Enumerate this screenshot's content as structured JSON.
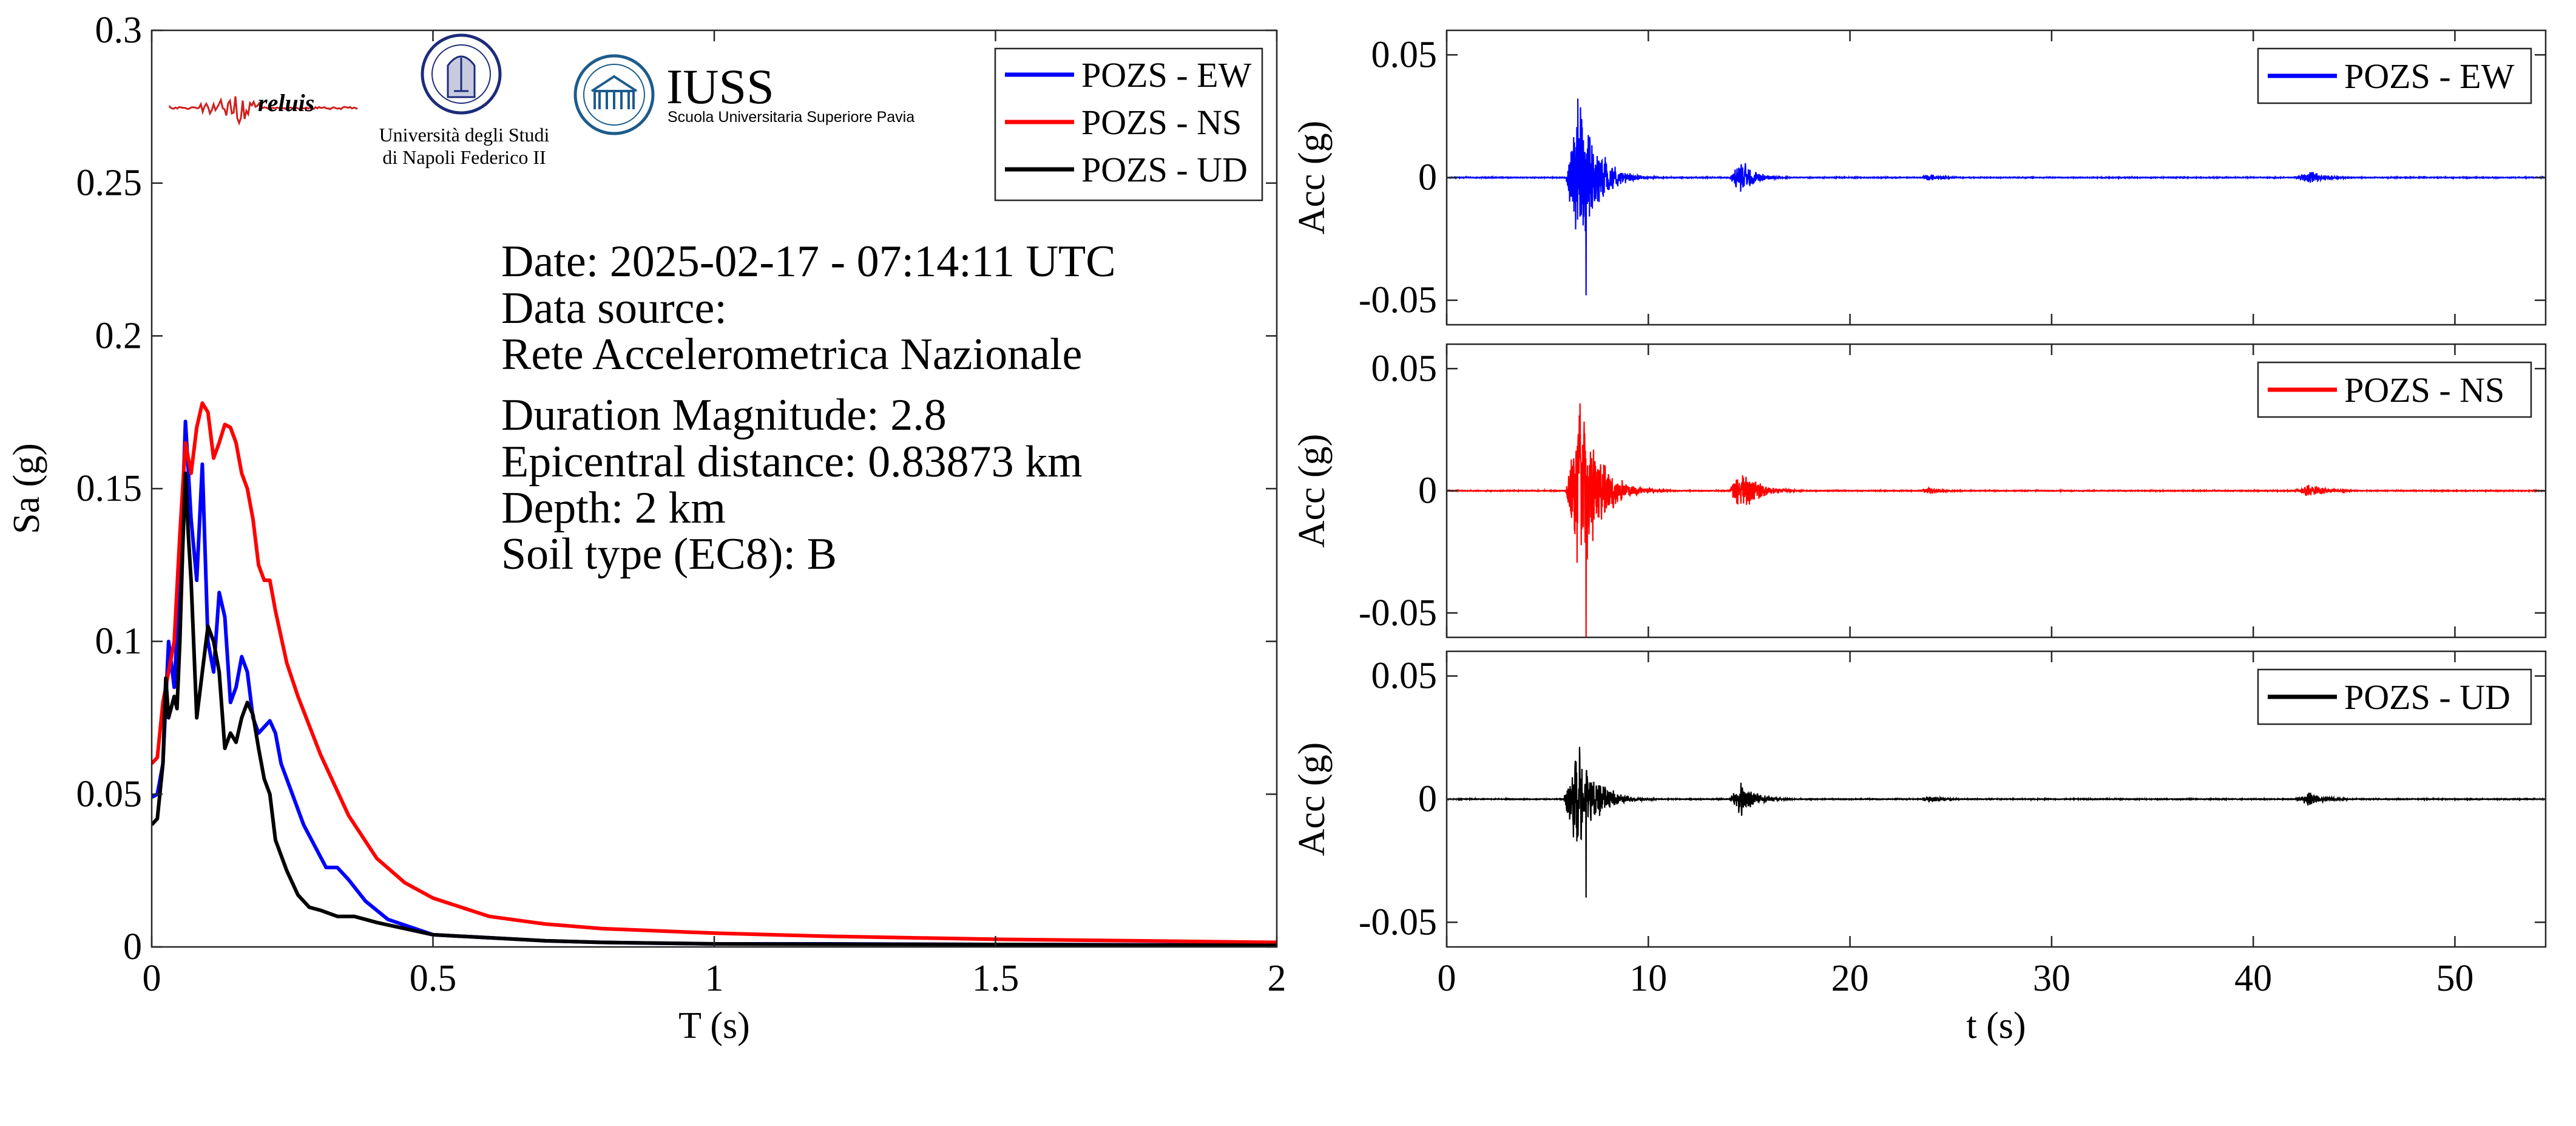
{
  "logos": {
    "reluis": "reluis",
    "unina_line1": "Università degli Studi",
    "unina_line2": "di Napoli Federico II",
    "iuss_title": "IUSS",
    "iuss_subtitle": "Scuola Universitaria Superiore Pavia"
  },
  "info": {
    "date": "Date: 2025-02-17 - 07:14:11 UTC",
    "data_source": "Data source:",
    "network": "Rete Accelerometrica Nazionale",
    "magnitude": "Duration Magnitude: 2.8",
    "distance": "Epicentral distance: 0.83873 km",
    "depth": "Depth: 2 km",
    "soil": "Soil type (EC8): B"
  },
  "colors": {
    "EW": "#0000ff",
    "NS": "#ff0000",
    "UD": "#000000"
  },
  "chart_data": [
    {
      "type": "line",
      "xlabel": "T (s)",
      "ylabel": "Sa (g)",
      "xlim": [
        0,
        2
      ],
      "ylim": [
        0,
        0.3
      ],
      "xticks": [
        0,
        0.5,
        1,
        1.5,
        2
      ],
      "xtick_labels": [
        "0",
        "0.5",
        "1",
        "1.5",
        "2"
      ],
      "yticks": [
        0,
        0.05,
        0.1,
        0.15,
        0.2,
        0.25,
        0.3
      ],
      "ytick_labels": [
        "0",
        "0.05",
        "0.1",
        "0.15",
        "0.2",
        "0.25",
        "0.3"
      ],
      "legend_position": "top-right",
      "series": [
        {
          "name": "POZS - EW",
          "color": "#0000ff",
          "x": [
            0,
            0.01,
            0.02,
            0.03,
            0.04,
            0.05,
            0.055,
            0.06,
            0.07,
            0.08,
            0.09,
            0.1,
            0.11,
            0.12,
            0.13,
            0.14,
            0.15,
            0.16,
            0.17,
            0.18,
            0.19,
            0.2,
            0.21,
            0.22,
            0.23,
            0.25,
            0.27,
            0.29,
            0.31,
            0.33,
            0.35,
            0.38,
            0.42,
            0.5,
            0.6,
            0.7,
            0.8,
            1.0,
            1.2,
            1.5,
            2.0
          ],
          "y": [
            0.049,
            0.05,
            0.06,
            0.1,
            0.085,
            0.12,
            0.145,
            0.172,
            0.14,
            0.12,
            0.158,
            0.1,
            0.09,
            0.116,
            0.108,
            0.08,
            0.085,
            0.095,
            0.09,
            0.075,
            0.07,
            0.072,
            0.074,
            0.07,
            0.06,
            0.05,
            0.04,
            0.033,
            0.026,
            0.026,
            0.022,
            0.015,
            0.009,
            0.004,
            0.003,
            0.002,
            0.0015,
            0.001,
            0.001,
            0.0008,
            0.0006
          ]
        },
        {
          "name": "POZS - NS",
          "color": "#ff0000",
          "x": [
            0,
            0.01,
            0.02,
            0.03,
            0.04,
            0.05,
            0.06,
            0.07,
            0.08,
            0.09,
            0.1,
            0.11,
            0.12,
            0.13,
            0.14,
            0.15,
            0.16,
            0.17,
            0.18,
            0.19,
            0.2,
            0.21,
            0.22,
            0.24,
            0.26,
            0.3,
            0.35,
            0.4,
            0.45,
            0.5,
            0.6,
            0.7,
            0.8,
            1.0,
            1.2,
            1.5,
            1.75,
            2.0
          ],
          "y": [
            0.06,
            0.062,
            0.08,
            0.09,
            0.1,
            0.135,
            0.165,
            0.155,
            0.17,
            0.178,
            0.175,
            0.16,
            0.165,
            0.171,
            0.17,
            0.165,
            0.155,
            0.15,
            0.14,
            0.125,
            0.12,
            0.12,
            0.11,
            0.093,
            0.082,
            0.063,
            0.043,
            0.029,
            0.021,
            0.016,
            0.01,
            0.0075,
            0.006,
            0.0045,
            0.0035,
            0.0025,
            0.002,
            0.0015
          ]
        },
        {
          "name": "POZS - UD",
          "color": "#000000",
          "x": [
            0,
            0.01,
            0.02,
            0.025,
            0.03,
            0.04,
            0.045,
            0.05,
            0.055,
            0.06,
            0.065,
            0.07,
            0.08,
            0.09,
            0.1,
            0.11,
            0.12,
            0.13,
            0.14,
            0.15,
            0.16,
            0.17,
            0.18,
            0.19,
            0.2,
            0.21,
            0.22,
            0.24,
            0.26,
            0.28,
            0.3,
            0.33,
            0.36,
            0.4,
            0.45,
            0.5,
            0.6,
            0.7,
            0.8,
            1.0,
            1.5,
            2.0
          ],
          "y": [
            0.04,
            0.042,
            0.06,
            0.088,
            0.075,
            0.082,
            0.078,
            0.1,
            0.13,
            0.155,
            0.135,
            0.12,
            0.075,
            0.09,
            0.105,
            0.1,
            0.09,
            0.065,
            0.07,
            0.067,
            0.075,
            0.08,
            0.076,
            0.065,
            0.055,
            0.05,
            0.035,
            0.025,
            0.017,
            0.013,
            0.012,
            0.01,
            0.01,
            0.008,
            0.006,
            0.004,
            0.003,
            0.002,
            0.0015,
            0.001,
            0.0008,
            0.0005
          ]
        }
      ]
    },
    {
      "type": "line",
      "xlabel": "",
      "ylabel": "Acc (g)",
      "xlim": [
        0,
        54.5
      ],
      "ylim": [
        -0.06,
        0.06
      ],
      "yticks": [
        -0.05,
        0,
        0.05
      ],
      "ytick_labels": [
        "-0.05",
        "0",
        "0.05"
      ],
      "legend_position": "top-right",
      "series": [
        {
          "name": "POZS - EW",
          "color": "#0000ff",
          "pga": 0.048,
          "bursts": [
            {
              "t0": 5.9,
              "dur": 4.6,
              "amp": 0.04,
              "decay": 1.0,
              "lead": 0.7
            },
            {
              "t0": 14.0,
              "dur": 3.6,
              "amp": 0.008,
              "decay": 1.2,
              "lead": 0.6
            },
            {
              "t0": 23.5,
              "dur": 2.5,
              "amp": 0.0015,
              "decay": 1.0,
              "lead": 0.4
            },
            {
              "t0": 42.0,
              "dur": 2.8,
              "amp": 0.003,
              "decay": 1.0,
              "lead": 0.8
            }
          ]
        }
      ]
    },
    {
      "type": "line",
      "xlabel": "",
      "ylabel": "Acc (g)",
      "xlim": [
        0,
        54.5
      ],
      "ylim": [
        -0.06,
        0.06
      ],
      "yticks": [
        -0.05,
        0,
        0.05
      ],
      "ytick_labels": [
        "-0.05",
        "0",
        "0.05"
      ],
      "legend_position": "top-right",
      "series": [
        {
          "name": "POZS - NS",
          "color": "#ff0000",
          "pga": 0.06,
          "bursts": [
            {
              "t0": 5.9,
              "dur": 5.2,
              "amp": 0.045,
              "decay": 0.9,
              "lead": 0.7
            },
            {
              "t0": 14.0,
              "dur": 4.5,
              "amp": 0.01,
              "decay": 1.0,
              "lead": 0.6
            },
            {
              "t0": 23.5,
              "dur": 2.5,
              "amp": 0.0015,
              "decay": 1.0,
              "lead": 0.4
            },
            {
              "t0": 42.0,
              "dur": 3.0,
              "amp": 0.003,
              "decay": 1.0,
              "lead": 0.8
            }
          ]
        }
      ]
    },
    {
      "type": "line",
      "xlabel": "t (s)",
      "ylabel": "Acc (g)",
      "xlim": [
        0,
        54.5
      ],
      "ylim": [
        -0.06,
        0.06
      ],
      "xticks": [
        0,
        10,
        20,
        30,
        40,
        50
      ],
      "xtick_labels": [
        "0",
        "10",
        "20",
        "30",
        "40",
        "50"
      ],
      "yticks": [
        -0.05,
        0,
        0.05
      ],
      "ytick_labels": [
        "-0.05",
        "0",
        "0.05"
      ],
      "legend_position": "top-right",
      "series": [
        {
          "name": "POZS - UD",
          "color": "#000000",
          "pga": 0.04,
          "bursts": [
            {
              "t0": 5.8,
              "dur": 5.0,
              "amp": 0.03,
              "decay": 1.0,
              "lead": 0.7
            },
            {
              "t0": 14.0,
              "dur": 4.5,
              "amp": 0.008,
              "decay": 1.1,
              "lead": 0.6
            },
            {
              "t0": 23.5,
              "dur": 2.5,
              "amp": 0.0015,
              "decay": 1.0,
              "lead": 0.4
            },
            {
              "t0": 42.0,
              "dur": 2.8,
              "amp": 0.003,
              "decay": 1.0,
              "lead": 0.8
            }
          ]
        }
      ]
    }
  ]
}
